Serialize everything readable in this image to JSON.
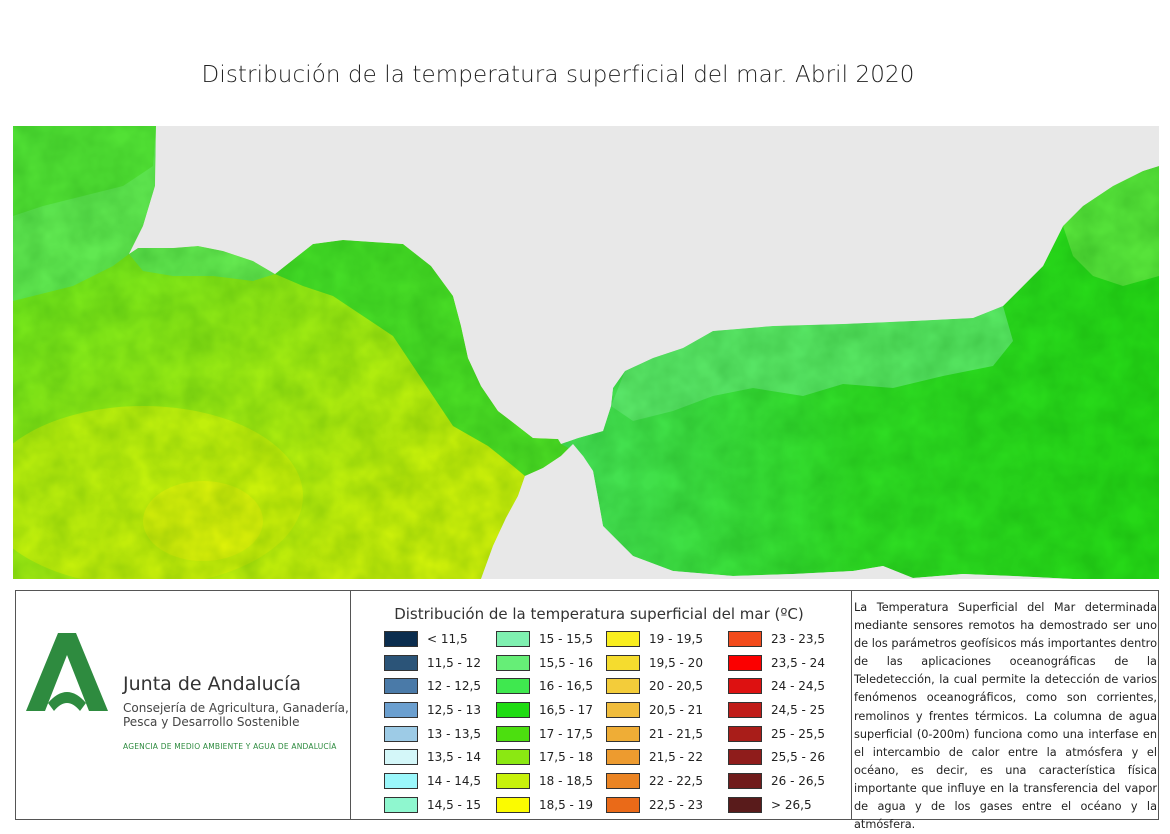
{
  "title": "Distribución de la temperatura superficial del mar. Abril 2020",
  "colors": {
    "land": "#e8e8e8",
    "sea_light": "#66ee66",
    "sea_green": "#33dd22",
    "sea_mid": "#77ee22",
    "sea_yellowgreen": "#aaee11",
    "sea_yellow": "#ccee00",
    "brand_green": "#2e8b3f"
  },
  "logo": {
    "icon": "junta-de-andalucia-logo-icon",
    "name": "Junta de Andalucía",
    "subtitle_lines": [
      "Consejería de Agricultura, Ganadería,",
      "Pesca y Desarrollo Sostenible"
    ],
    "agency": "AGENCIA DE MEDIO AMBIENTE Y AGUA DE ANDALUCÍA"
  },
  "legend": {
    "title": "Distribución de la temperatura superficial del mar (ºC)",
    "items": [
      {
        "label": "< 11,5",
        "color": "#0b2d4e"
      },
      {
        "label": "11,5 - 12",
        "color": "#2b5478"
      },
      {
        "label": "12 - 12,5",
        "color": "#4a7aa8"
      },
      {
        "label": "12,5 - 13",
        "color": "#6b9fcf"
      },
      {
        "label": "13 - 13,5",
        "color": "#9dcbe6"
      },
      {
        "label": "13,5 - 14",
        "color": "#d4f7f9"
      },
      {
        "label": "14 - 14,5",
        "color": "#9bf7fb"
      },
      {
        "label": "14,5 - 15",
        "color": "#8ff7cf"
      },
      {
        "label": "15 - 15,5",
        "color": "#7ff0b0"
      },
      {
        "label": "15,5 - 16",
        "color": "#66ee77"
      },
      {
        "label": "16 - 16,5",
        "color": "#3fe84f"
      },
      {
        "label": "16,5 - 17",
        "color": "#1fdc12"
      },
      {
        "label": "17 - 17,5",
        "color": "#4cdf0f"
      },
      {
        "label": "17,5 - 18",
        "color": "#8be812"
      },
      {
        "label": "18 - 18,5",
        "color": "#c8f20b"
      },
      {
        "label": "18,5 - 19",
        "color": "#fbfb00"
      },
      {
        "label": "19 - 19,5",
        "color": "#f9ee1f"
      },
      {
        "label": "19,5 - 20",
        "color": "#f5dc2e"
      },
      {
        "label": "20 - 20,5",
        "color": "#f3cc3a"
      },
      {
        "label": "20,5 - 21",
        "color": "#f1bd3c"
      },
      {
        "label": "21 - 21,5",
        "color": "#efad36"
      },
      {
        "label": "21,5 - 22",
        "color": "#ed9b2f"
      },
      {
        "label": "22 - 22,5",
        "color": "#eb8423"
      },
      {
        "label": "22,5 - 23",
        "color": "#ea6a18"
      },
      {
        "label": "23 - 23,5",
        "color": "#f34b1c"
      },
      {
        "label": "23,5 - 24",
        "color": "#fb0000"
      },
      {
        "label": "24 - 24,5",
        "color": "#dd1111"
      },
      {
        "label": "24,5 - 25",
        "color": "#c01c19"
      },
      {
        "label": "25 - 25,5",
        "color": "#a91d19"
      },
      {
        "label": "25,5 - 26",
        "color": "#8f1c1b"
      },
      {
        "label": "26 - 26,5",
        "color": "#701c1c"
      },
      {
        "label": "> 26,5",
        "color": "#591b1b"
      }
    ]
  },
  "description": "La Temperatura Superficial del Mar determinada mediante sensores remotos ha demostrado ser uno de los parámetros geofísicos más importantes dentro de las aplicaciones oceanográficas de la Teledetección, la cual permite la detección de varios fenómenos oceanográficos, como son corrientes, remolinos y frentes térmicos. La columna de agua superficial (0-200m) funciona como una interfase en el intercambio de calor entre la atmósfera y el océano, es decir, es una característica física importante que influye en la transferencia del vapor de agua y de los gases entre el océano y la atmósfera."
}
